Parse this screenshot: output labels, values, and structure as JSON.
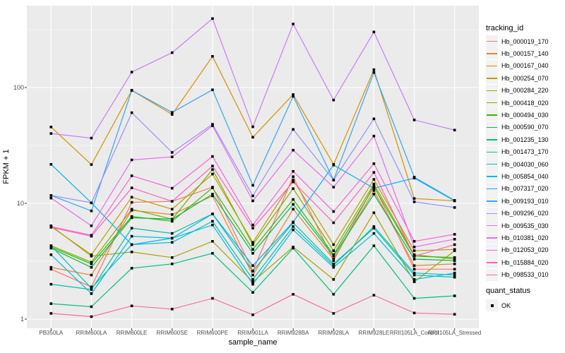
{
  "chart_data": {
    "type": "line",
    "title": "",
    "xlabel": "sample_name",
    "ylabel": "FPKM + 1",
    "y_scale": "log10",
    "y_ticks": [
      1,
      10,
      100
    ],
    "y_minor_ticks": [
      3.162,
      31.62,
      316.2
    ],
    "ylim": [
      0.85,
      510
    ],
    "grid": true,
    "legend_position": "right",
    "marker": "black-square",
    "panel_bg": "#EBEBEB",
    "grid_color": "#FFFFFF",
    "tick_text_color": "#4d4d4d",
    "categories": [
      "PB350LA",
      "RRIM600LA",
      "RRIM600LE",
      "RRIM600SE",
      "RRIM600PE",
      "RRIM901LA",
      "RRIM928BA",
      "RRIM928LA",
      "RRIM928LE",
      "RRII105LA_Control",
      "RRII105LA_Stressed"
    ],
    "series": [
      {
        "name": "Hb_000019_170",
        "color": "#F8766D",
        "values": [
          2.7,
          1.9,
          10.2,
          10.4,
          13.8,
          2.6,
          17.0,
          3.2,
          14.3,
          2.7,
          2.7
        ]
      },
      {
        "name": "Hb_000157_140",
        "color": "#EA8331",
        "values": [
          2.8,
          2.4,
          8.7,
          8.0,
          11.6,
          2.4,
          8.9,
          3.3,
          12.9,
          2.9,
          3.0
        ]
      },
      {
        "name": "Hb_000167_040",
        "color": "#D89000",
        "values": [
          45.6,
          21.6,
          94.6,
          58.6,
          186.0,
          37.2,
          87.0,
          21.7,
          142.6,
          11.0,
          10.5
        ]
      },
      {
        "name": "Hb_000254_070",
        "color": "#C09B00",
        "values": [
          6.3,
          3.6,
          11.3,
          8.9,
          17.9,
          4.6,
          15.9,
          4.4,
          16.1,
          3.9,
          4.0
        ]
      },
      {
        "name": "Hb_000284_220",
        "color": "#A3A500",
        "values": [
          6.4,
          3.5,
          3.8,
          3.4,
          4.7,
          2.1,
          4.2,
          2.2,
          8.3,
          2.1,
          3.9
        ]
      },
      {
        "name": "Hb_000418_020",
        "color": "#7CAE00",
        "values": [
          4.3,
          3.1,
          8.9,
          7.3,
          19.6,
          4.4,
          13.4,
          3.9,
          14.7,
          3.6,
          3.3
        ]
      },
      {
        "name": "Hb_000494_030",
        "color": "#39B600",
        "values": [
          4.2,
          3.0,
          7.7,
          7.0,
          13.6,
          4.0,
          10.8,
          3.6,
          13.9,
          3.5,
          3.4
        ]
      },
      {
        "name": "Hb_000590_070",
        "color": "#00BB4E",
        "values": [
          4.1,
          2.8,
          7.5,
          7.3,
          12.0,
          3.7,
          9.8,
          3.5,
          12.0,
          3.3,
          3.2
        ]
      },
      {
        "name": "Hb_001235_130",
        "color": "#00BF7D",
        "values": [
          1.36,
          1.28,
          2.75,
          3.0,
          3.7,
          1.7,
          4.1,
          1.64,
          4.3,
          1.51,
          1.59
        ]
      },
      {
        "name": "Hb_001473_170",
        "color": "#00C1A3",
        "values": [
          2.0,
          1.8,
          6.1,
          5.5,
          8.1,
          2.6,
          6.8,
          3.0,
          6.1,
          2.4,
          2.3
        ]
      },
      {
        "name": "Hb_004030_060",
        "color": "#00BFC4",
        "values": [
          4.3,
          1.85,
          4.4,
          4.6,
          7.0,
          2.2,
          6.3,
          2.9,
          6.3,
          2.5,
          2.4
        ]
      },
      {
        "name": "Hb_005854_040",
        "color": "#00BAE0",
        "values": [
          3.6,
          1.66,
          5.2,
          5.0,
          6.5,
          2.0,
          5.9,
          2.8,
          5.5,
          2.2,
          2.5
        ]
      },
      {
        "name": "Hb_007317_020",
        "color": "#00B0F6",
        "values": [
          21.7,
          10.1,
          4.4,
          5.0,
          8.1,
          2.9,
          6.9,
          21.4,
          13.5,
          16.5,
          10.5
        ]
      },
      {
        "name": "Hb_009193_010",
        "color": "#35A2FF",
        "values": [
          11.7,
          8.6,
          94.6,
          61.0,
          95.6,
          14.3,
          84.0,
          15.9,
          135.0,
          16.8,
          10.6
        ]
      },
      {
        "name": "Hb_009296_020",
        "color": "#9590FF",
        "values": [
          11.7,
          10.1,
          60.7,
          27.5,
          48.2,
          11.6,
          43.5,
          15.9,
          53.7,
          10.3,
          9.2
        ]
      },
      {
        "name": "Hb_009535_030",
        "color": "#C77CFF",
        "values": [
          40.1,
          36.6,
          136.0,
          200.0,
          394.0,
          45.8,
          354.0,
          78.0,
          302.0,
          52.5,
          42.9
        ]
      },
      {
        "name": "Hb_010381_020",
        "color": "#E76BF3",
        "values": [
          11.1,
          6.4,
          23.7,
          25.2,
          46.8,
          10.5,
          28.8,
          13.8,
          38.1,
          4.2,
          4.9
        ]
      },
      {
        "name": "Hb_012053_020",
        "color": "#FA62DB",
        "values": [
          6.3,
          5.3,
          17.3,
          13.5,
          25.4,
          6.5,
          18.9,
          8.5,
          22.0,
          4.7,
          5.4
        ]
      },
      {
        "name": "Hb_015884_020",
        "color": "#FF62BC",
        "values": [
          6.2,
          5.2,
          13.6,
          10.4,
          21.0,
          6.1,
          15.3,
          6.8,
          18.5,
          3.5,
          4.4
        ]
      },
      {
        "name": "Hb_098533_010",
        "color": "#FF6A98",
        "values": [
          1.12,
          1.05,
          1.3,
          1.22,
          1.51,
          1.09,
          1.64,
          1.12,
          1.61,
          1.13,
          1.1
        ]
      }
    ],
    "legend": {
      "tracking_title": "tracking_id",
      "quant_title": "quant_status",
      "quant_ok_label": "OK"
    }
  }
}
